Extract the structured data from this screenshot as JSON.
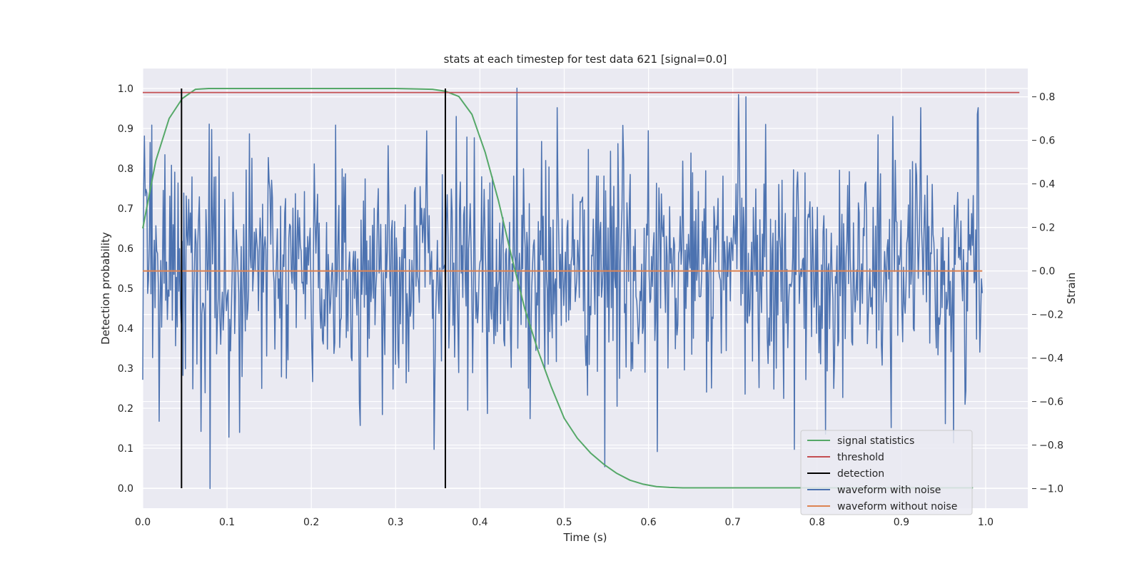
{
  "chart_data": {
    "type": "line",
    "title": "stats at each timestep for test data 621 [signal=0.0]",
    "xlabel": "Time (s)",
    "ylabel_left": "Detection probability",
    "ylabel_right": "Strain",
    "xlim": [
      0.0,
      1.05
    ],
    "ylim_left": [
      -0.05,
      1.05
    ],
    "ylim_right": [
      -1.09,
      0.93
    ],
    "x_ticks": [
      0.0,
      0.1,
      0.2,
      0.3,
      0.4,
      0.5,
      0.6,
      0.7,
      0.8,
      0.9,
      1.0
    ],
    "x_tick_labels": [
      "0.0",
      "0.1",
      "0.2",
      "0.3",
      "0.4",
      "0.5",
      "0.6",
      "0.7",
      "0.8",
      "0.9",
      "1.0"
    ],
    "y_left_ticks": [
      0.0,
      0.1,
      0.2,
      0.3,
      0.4,
      0.5,
      0.6,
      0.7,
      0.8,
      0.9,
      1.0
    ],
    "y_left_tick_labels": [
      "0.0",
      "0.1",
      "0.2",
      "0.3",
      "0.4",
      "0.5",
      "0.6",
      "0.7",
      "0.8",
      "0.9",
      "1.0"
    ],
    "y_right_ticks": [
      -1.0,
      -0.8,
      -0.6,
      -0.4,
      -0.2,
      0.0,
      0.2,
      0.4,
      0.6,
      0.8
    ],
    "y_right_tick_labels": [
      "−1.0",
      "−0.8",
      "−0.6",
      "−0.4",
      "−0.2",
      "0.0",
      "0.2",
      "0.4",
      "0.6",
      "0.8"
    ],
    "grid": true,
    "legend_position": "bottom-right",
    "colors": {
      "background": "#eaeaf2",
      "grid": "#ffffff",
      "signal_statistics": "#55a868",
      "threshold": "#c44e52",
      "detection": "#000000",
      "waveform_noise": "#4c72b0",
      "waveform_clean": "#dd8452"
    },
    "series": [
      {
        "name": "signal statistics",
        "axis": "left",
        "x": [
          0.0,
          0.0156,
          0.0313,
          0.0469,
          0.0625,
          0.0781,
          0.0938,
          0.1094,
          0.125,
          0.2,
          0.3,
          0.3438,
          0.3594,
          0.375,
          0.3906,
          0.4063,
          0.4219,
          0.4375,
          0.4531,
          0.4688,
          0.4844,
          0.5,
          0.5156,
          0.5313,
          0.5469,
          0.5625,
          0.5781,
          0.5938,
          0.6094,
          0.625,
          0.6406,
          0.7,
          0.8,
          0.9,
          0.985
        ],
        "y": [
          0.65,
          0.82,
          0.925,
          0.975,
          0.998,
          1.0,
          1.0,
          1.0,
          1.0,
          1.0,
          1.0,
          0.998,
          0.993,
          0.98,
          0.935,
          0.84,
          0.72,
          0.58,
          0.45,
          0.345,
          0.255,
          0.175,
          0.125,
          0.088,
          0.06,
          0.037,
          0.02,
          0.01,
          0.004,
          0.002,
          0.001,
          0.001,
          0.001,
          0.001,
          0.001
        ]
      },
      {
        "name": "threshold",
        "axis": "left",
        "x": [
          0.0,
          1.04
        ],
        "y": [
          0.99,
          0.99
        ]
      },
      {
        "name": "detection",
        "axis": "left",
        "x_values": [
          0.046,
          0.359
        ],
        "y_range": [
          0.0,
          1.0
        ]
      },
      {
        "name": "waveform with noise",
        "axis": "right",
        "x_range": [
          0.0,
          0.996
        ],
        "sample_count": 1024,
        "y_min": -1.0,
        "y_max": 0.84,
        "spikes": [
          {
            "x": 0.0,
            "y": -0.5
          },
          {
            "x": 0.002,
            "y": 0.62
          },
          {
            "x": 0.009,
            "y": 0.59
          },
          {
            "x": 0.011,
            "y": 0.67
          },
          {
            "x": 0.048,
            "y": -0.48
          },
          {
            "x": 0.074,
            "y": -0.56
          },
          {
            "x": 0.08,
            "y": -1.0
          },
          {
            "x": 0.082,
            "y": 0.65
          },
          {
            "x": 0.127,
            "y": 0.63
          },
          {
            "x": 0.229,
            "y": 0.67
          },
          {
            "x": 0.258,
            "y": -0.71
          },
          {
            "x": 0.361,
            "y": 0.35
          },
          {
            "x": 0.372,
            "y": 0.71
          },
          {
            "x": 0.444,
            "y": 0.84
          },
          {
            "x": 0.548,
            "y": -0.9
          },
          {
            "x": 0.555,
            "y": 0.55
          },
          {
            "x": 0.61,
            "y": -0.83
          },
          {
            "x": 0.707,
            "y": 0.81
          },
          {
            "x": 0.716,
            "y": 0.8
          },
          {
            "x": 0.81,
            "y": -0.75
          },
          {
            "x": 0.888,
            "y": -0.72
          },
          {
            "x": 0.89,
            "y": 0.71
          },
          {
            "x": 0.962,
            "y": -0.79
          },
          {
            "x": 0.99,
            "y": 0.72
          }
        ]
      },
      {
        "name": "waveform without noise",
        "axis": "right",
        "x": [
          0.0,
          0.996
        ],
        "y": [
          0.0,
          0.0
        ]
      }
    ],
    "legend": [
      "signal statistics",
      "threshold",
      "detection",
      "waveform with noise",
      "waveform without noise"
    ]
  }
}
